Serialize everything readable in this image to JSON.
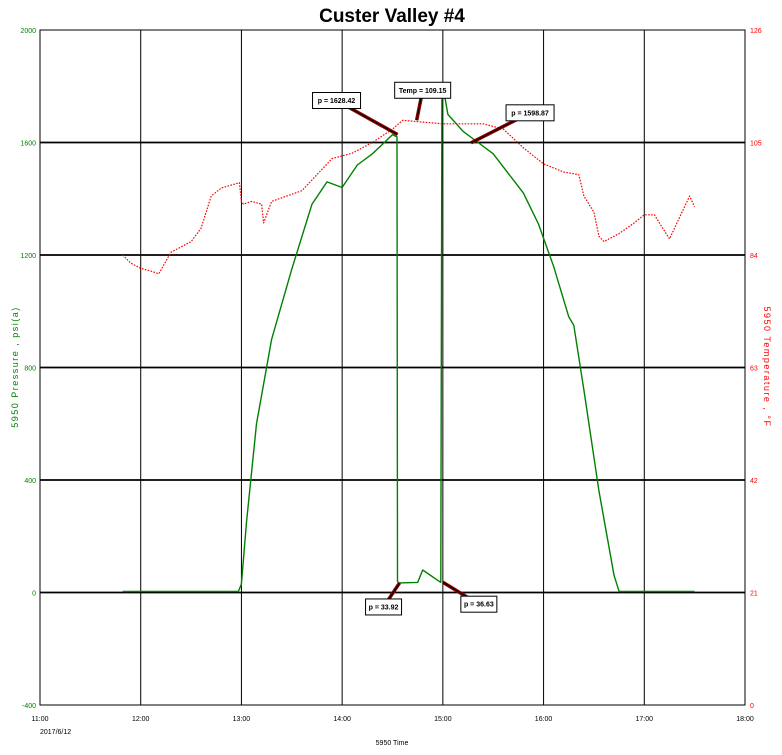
{
  "chart_data": {
    "type": "line",
    "title": "Custer Valley #4",
    "xlabel": "5950 Time",
    "ylabel_left": "5950 Pressure , psi(a)",
    "ylabel_right": "5950 Temperature , °F",
    "date_label": "2017/6/12",
    "x_ticks": [
      "11:00",
      "12:00",
      "13:00",
      "14:00",
      "15:00",
      "16:00",
      "17:00",
      "18:00"
    ],
    "x_tick_hours": [
      11,
      12,
      13,
      14,
      15,
      16,
      17,
      18
    ],
    "xlim_hours": [
      11,
      18
    ],
    "y_left_ticks": [
      "-400",
      "0",
      "400",
      "800",
      "1200",
      "1600",
      "2000"
    ],
    "y_left_values": [
      -400,
      0,
      400,
      800,
      1200,
      1600,
      2000
    ],
    "ylim_left": [
      -400,
      2000
    ],
    "y_right_ticks": [
      "0",
      "21",
      "42",
      "63",
      "84",
      "105",
      "126"
    ],
    "y_right_values": [
      0,
      21,
      42,
      63,
      84,
      105,
      126
    ],
    "ylim_right": [
      0,
      126
    ],
    "grid": true,
    "colors": {
      "pressure": "#008000",
      "temperature": "#ff0000",
      "left_axis": "#008000",
      "right_axis": "#ff0000",
      "arrow": "#8b0000"
    },
    "series": [
      {
        "name": "5950 Pressure , psi(a)",
        "axis": "left",
        "style": "solid",
        "x": [
          11.82,
          12.97,
          13.0,
          13.05,
          13.15,
          13.3,
          13.5,
          13.7,
          13.85,
          14.0,
          14.15,
          14.3,
          14.42,
          14.5,
          14.545,
          14.55,
          14.56,
          14.75,
          14.8,
          14.98,
          14.99,
          15.0,
          15.05,
          15.2,
          15.35,
          15.5,
          15.65,
          15.8,
          15.95,
          16.1,
          16.25,
          16.3,
          16.4,
          16.55,
          16.7,
          16.75,
          17.5
        ],
        "y": [
          4,
          4,
          30,
          250,
          600,
          900,
          1150,
          1380,
          1460,
          1440,
          1520,
          1560,
          1600,
          1628,
          1620,
          40,
          34,
          36,
          80,
          36,
          1750,
          1800,
          1700,
          1640,
          1600,
          1560,
          1490,
          1420,
          1310,
          1160,
          980,
          950,
          720,
          360,
          60,
          4,
          4
        ]
      },
      {
        "name": "5950 Temperature , °F",
        "axis": "right",
        "style": "dotted",
        "x": [
          11.82,
          11.9,
          12.0,
          12.1,
          12.18,
          12.3,
          12.5,
          12.6,
          12.7,
          12.8,
          12.98,
          13.0,
          13.02,
          13.1,
          13.2,
          13.22,
          13.3,
          13.45,
          13.6,
          13.75,
          13.9,
          14.1,
          14.3,
          14.5,
          14.6,
          14.8,
          15.0,
          15.2,
          15.4,
          15.6,
          15.8,
          16.0,
          16.2,
          16.35,
          16.4,
          16.5,
          16.55,
          16.6,
          16.65,
          16.75,
          16.9,
          17.0,
          17.1,
          17.15,
          17.25,
          17.35,
          17.45,
          17.5
        ],
        "y": [
          84,
          82.5,
          81.5,
          81,
          80.5,
          84.5,
          86.5,
          89,
          95,
          96.5,
          97.5,
          94,
          93.5,
          94,
          93.5,
          90,
          94,
          95,
          96,
          99,
          102,
          103,
          105,
          107.5,
          109.15,
          108.8,
          108.5,
          108.5,
          108.5,
          107.5,
          104,
          101,
          99.5,
          99,
          95,
          92,
          87.5,
          86.5,
          87,
          88,
          90,
          91.5,
          91.5,
          90,
          87,
          91,
          95,
          93
        ]
      }
    ],
    "annotations": [
      {
        "label": "p = 1628.42",
        "hour": 14.55,
        "value": 1628.42,
        "axis": "left"
      },
      {
        "label": "Temp = 109.15",
        "hour": 14.74,
        "value": 109.15,
        "axis": "right"
      },
      {
        "label": "p = 1598.87",
        "hour": 15.28,
        "value": 1598.87,
        "axis": "left"
      },
      {
        "label": "p = 33.92",
        "hour": 14.57,
        "value": 33.92,
        "axis": "left"
      },
      {
        "label": "p = 36.63",
        "hour": 15.0,
        "value": 36.63,
        "axis": "left"
      }
    ]
  }
}
